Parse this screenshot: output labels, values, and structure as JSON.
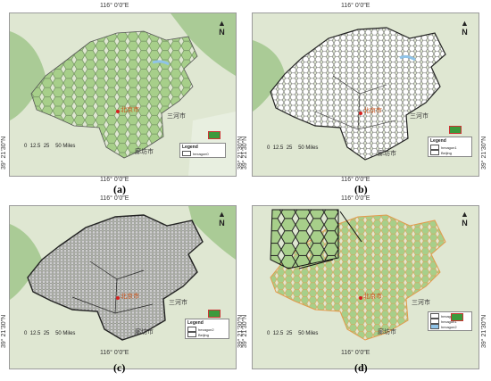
{
  "panels": [
    {
      "id": "a",
      "caption": "(a)",
      "top_coord": "116° 0’0″E",
      "bottom_coord": "116° 0’0″E",
      "left_coord": "39° 21’30″N",
      "right_coord": "39° 21’30″N",
      "north_label": "N",
      "scale_labels": [
        "0",
        "12.5",
        "25",
        "50 Miles"
      ],
      "cities": {
        "capital": "北京市",
        "sanhe": "三河市",
        "langfang": "廊坊市"
      },
      "legend": {
        "title": "Legend",
        "items": [
          "hexagon0"
        ]
      }
    },
    {
      "id": "b",
      "caption": "(b)",
      "top_coord": "116° 0’0″E",
      "bottom_coord": "116° 0’0″E",
      "left_coord": "39° 21’30″N",
      "right_coord": "39° 21’30″N",
      "north_label": "N",
      "scale_labels": [
        "0",
        "12.5",
        "25",
        "50 Miles"
      ],
      "cities": {
        "capital": "北京市",
        "sanhe": "三河市",
        "langfang": "廊坊市"
      },
      "legend": {
        "title": "Legend",
        "items": [
          "hexagon1",
          "Beijing"
        ]
      }
    },
    {
      "id": "c",
      "caption": "(c)",
      "top_coord": "116° 0’0″E",
      "bottom_coord": "116° 0’0″E",
      "left_coord": "39° 21’30″N",
      "right_coord": "39° 21’30″N",
      "north_label": "N",
      "scale_labels": [
        "0",
        "12.5",
        "25",
        "50 Miles"
      ],
      "cities": {
        "capital": "北京市",
        "sanhe": "三河市",
        "langfang": "廊坊市"
      },
      "legend": {
        "title": "Legend",
        "items": [
          "hexagon2",
          "Beijing"
        ]
      }
    },
    {
      "id": "d",
      "caption": "(d)",
      "top_coord": "116° 0’0″E",
      "bottom_coord": "116° 0’0″E",
      "left_coord": "39° 21’30″N",
      "right_coord": "39° 21’30″N",
      "north_label": "N",
      "scale_labels": [
        "0",
        "12.5",
        "25",
        "50 Miles"
      ],
      "cities": {
        "capital": "北京市",
        "sanhe": "三河市",
        "langfang": "廊坊市"
      },
      "legend": {
        "title": "",
        "items": [
          "hexagon0",
          "hexagon1",
          "hexagon2"
        ]
      }
    }
  ],
  "colors": {
    "terrain": "#dfe7d2",
    "forest": "#9cc487",
    "hex_fill": "#a7cf8a",
    "hex_stroke": "#6f8f5e",
    "hex_dark": "#4a4a4a",
    "boundary": "#333333",
    "capital_dot": "#d62020",
    "water": "#8fc3e8"
  }
}
